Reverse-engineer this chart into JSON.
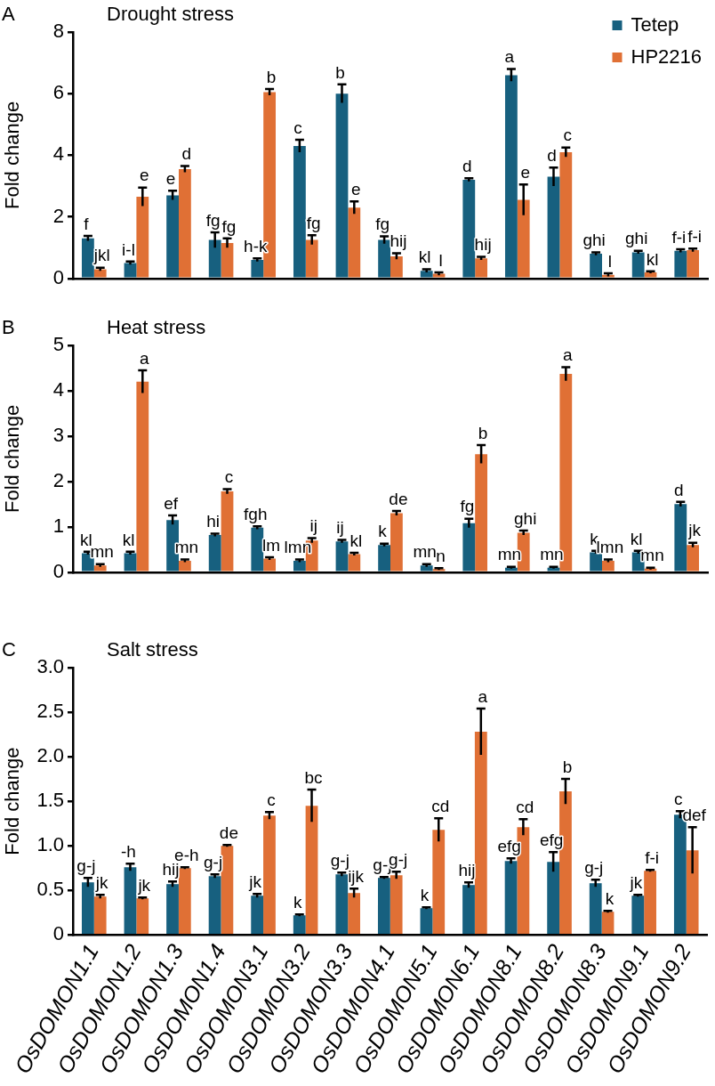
{
  "chart_data": [
    {
      "type": "bar",
      "title": "Drought stress",
      "ylabel": "Fold change",
      "annotations": [
        "A"
      ],
      "categories": [
        null,
        null,
        null,
        null,
        null,
        null,
        null,
        null,
        null,
        null,
        null,
        null,
        null,
        null,
        null
      ],
      "series": [
        {
          "name": "Tetep",
          "color": "#17607f",
          "values": [
            1.3,
            0.5,
            2.7,
            1.25,
            0.6,
            4.3,
            6.0,
            1.25,
            0.25,
            3.2,
            6.6,
            3.3,
            0.8,
            0.85,
            0.9
          ],
          "errors": [
            0.08,
            0.05,
            0.15,
            0.25,
            0.05,
            0.2,
            0.3,
            0.12,
            0.05,
            0.05,
            0.2,
            0.3,
            0.05,
            0.05,
            0.05
          ],
          "value_labels": [
            "f",
            "i-l",
            "e",
            "fg",
            "h-k",
            "c",
            "b",
            "fg",
            "kl",
            "d",
            "a",
            "d",
            "ghi",
            "ghi",
            "f-i"
          ]
        },
        {
          "name": "HP2216",
          "color": "#e07035",
          "values": [
            0.3,
            2.65,
            3.55,
            1.15,
            6.05,
            1.25,
            2.3,
            0.72,
            0.15,
            0.65,
            2.55,
            4.1,
            0.12,
            0.2,
            0.92
          ],
          "errors": [
            0.05,
            0.3,
            0.1,
            0.15,
            0.1,
            0.15,
            0.2,
            0.1,
            0.05,
            0.05,
            0.5,
            0.15,
            0.05,
            0.03,
            0.05
          ],
          "value_labels": [
            "jkl",
            "e",
            "d",
            "fg",
            "b",
            "fg",
            "e",
            "hij",
            "l",
            "hij",
            "e",
            "c",
            "l",
            "kl",
            "f-i"
          ]
        }
      ],
      "ylim": [
        0,
        8
      ],
      "yticks": [
        0,
        2,
        4,
        6,
        8
      ],
      "legend": "top right",
      "tick_labels": "y"
    },
    {
      "type": "bar",
      "title": "Heat stress",
      "ylabel": "Fold change",
      "annotations": [
        "B"
      ],
      "categories": [
        null,
        null,
        null,
        null,
        null,
        null,
        null,
        null,
        null,
        null,
        null,
        null,
        null,
        null,
        null
      ],
      "series": [
        {
          "color": "#17607f",
          "values": [
            0.42,
            0.42,
            1.15,
            0.82,
            0.98,
            0.25,
            0.68,
            0.6,
            0.15,
            1.08,
            0.1,
            0.1,
            0.44,
            0.44,
            1.5
          ],
          "errors": [
            0.03,
            0.03,
            0.1,
            0.03,
            0.03,
            0.03,
            0.03,
            0.03,
            0.03,
            0.1,
            0.02,
            0.02,
            0.03,
            0.03,
            0.05
          ],
          "value_labels": [
            "kl",
            "kl",
            "ef",
            "hi",
            "fgh",
            "lmn",
            "ij",
            "k",
            "mn",
            "fg",
            "mn",
            "mn",
            "k",
            "kl",
            "d"
          ]
        },
        {
          "color": "#e07035",
          "values": [
            0.15,
            4.2,
            0.25,
            1.78,
            0.3,
            0.7,
            0.4,
            1.3,
            0.07,
            2.6,
            0.87,
            4.37,
            0.25,
            0.08,
            0.6
          ],
          "errors": [
            0.03,
            0.25,
            0.03,
            0.05,
            0.03,
            0.05,
            0.03,
            0.05,
            0.02,
            0.2,
            0.05,
            0.15,
            0.03,
            0.02,
            0.05
          ],
          "value_labels": [
            "mn",
            "a",
            "mn",
            "c",
            "lm",
            "ij",
            "kl",
            "de",
            "n",
            "b",
            "ghi",
            "a",
            "lmn",
            "mn",
            "jk"
          ]
        }
      ],
      "ylim": [
        0,
        5
      ],
      "yticks": [
        0,
        1,
        2,
        3,
        4,
        5
      ],
      "tick_labels": "y"
    },
    {
      "type": "bar",
      "title": "Salt stress",
      "ylabel": "Fold change",
      "annotations": [
        "C"
      ],
      "categories": [
        "OsDOMON1.1",
        "OsDOMON1.2",
        "OsDOMON1.3",
        "OsDOMON1.4",
        "OsDOMON3.1",
        "OsDOMON3.2",
        "OsDOMON3.3",
        "OsDOMON4.1",
        "OsDOMON5.1",
        "OsDOMON6.1",
        "OsDOMON8.1",
        "OsDOMON8.2",
        "OsDOMON8.3",
        "OsDOMON9.1",
        "OsDOMON9.2"
      ],
      "series": [
        {
          "color": "#17607f",
          "values": [
            0.59,
            0.76,
            0.57,
            0.66,
            0.44,
            0.22,
            0.68,
            0.64,
            0.3,
            0.56,
            0.83,
            0.82,
            0.58,
            0.44,
            1.35
          ],
          "errors": [
            0.05,
            0.04,
            0.03,
            0.02,
            0.02,
            0.01,
            0.02,
            0.01,
            0.01,
            0.03,
            0.03,
            0.11,
            0.04,
            0.01,
            0.04
          ],
          "value_labels": [
            "g-j",
            "-h",
            "hij",
            "g-j",
            "jk",
            "k",
            "g-j",
            "g-j",
            "k",
            "hij",
            "efg",
            "efg",
            "g-j",
            "jk",
            "c"
          ]
        },
        {
          "color": "#e07035",
          "values": [
            0.43,
            0.41,
            0.75,
            1.0,
            1.34,
            1.45,
            0.47,
            0.67,
            1.18,
            2.28,
            1.21,
            1.61,
            0.26,
            0.72,
            0.95
          ],
          "errors": [
            0.02,
            0.01,
            0.01,
            0.01,
            0.04,
            0.18,
            0.05,
            0.04,
            0.13,
            0.26,
            0.09,
            0.14,
            0.01,
            0.01,
            0.26
          ],
          "value_labels": [
            "jk",
            "jk",
            "e-h",
            "de",
            "c",
            "bc",
            "ijk",
            "g-j",
            "cd",
            "a",
            "cd",
            "b",
            "k",
            "f-i",
            "def"
          ]
        }
      ],
      "ylim": [
        0,
        3.0
      ],
      "yticks": [
        {
          "value": 0,
          "label": "0"
        },
        {
          "value": 0.5,
          "label": "0.5"
        },
        {
          "value": 1,
          "label": "1.0"
        },
        {
          "value": 1.5,
          "label": "1.5"
        },
        {
          "value": 2,
          "label": "2.0"
        },
        {
          "value": 2.5,
          "label": "2.5"
        },
        {
          "value": 3,
          "label": "3.0"
        }
      ]
    }
  ]
}
